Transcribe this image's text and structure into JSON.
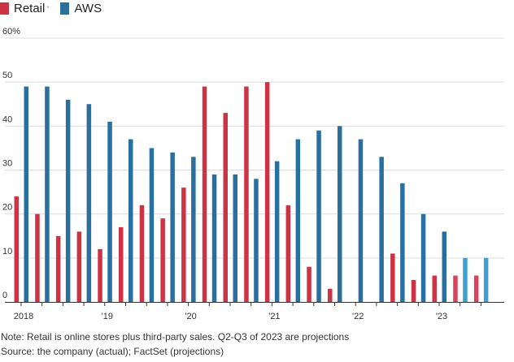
{
  "legend": {
    "retail_label": "Retail",
    "retail_marker": "*",
    "aws_label": "AWS"
  },
  "colors": {
    "retail": "#cc3344",
    "aws": "#2970a0",
    "retail_projection": "#d9435c",
    "aws_projection": "#3d9fd6",
    "grid": "#dddddd",
    "axis": "#333333"
  },
  "notes": {
    "note": "Note: Retail is online stores plus third-party sales. Q2-Q3 of 2023 are projections",
    "source": "Source: the company (actual); FactSet (projections)"
  },
  "chart_data": {
    "type": "bar",
    "title": "",
    "xlabel": "",
    "ylabel": "",
    "ylim": [
      0,
      60
    ],
    "yticks": [
      "0",
      "10",
      "20",
      "30",
      "40",
      "50",
      "60%"
    ],
    "xtick_labels": [
      {
        "label": "2018",
        "quarter_index": 0
      },
      {
        "label": "'19",
        "quarter_index": 4
      },
      {
        "label": "'20",
        "quarter_index": 8
      },
      {
        "label": "'21",
        "quarter_index": 12
      },
      {
        "label": "'22",
        "quarter_index": 16
      },
      {
        "label": "'23",
        "quarter_index": 20
      }
    ],
    "categories": [
      "Q1 2018",
      "Q2 2018",
      "Q3 2018",
      "Q4 2018",
      "Q1 2019",
      "Q2 2019",
      "Q3 2019",
      "Q4 2019",
      "Q1 2020",
      "Q2 2020",
      "Q3 2020",
      "Q4 2020",
      "Q1 2021",
      "Q2 2021",
      "Q3 2021",
      "Q4 2021",
      "Q1 2022",
      "Q2 2022",
      "Q3 2022",
      "Q4 2022",
      "Q1 2023",
      "Q2 2023",
      "Q3 2023"
    ],
    "projected": [
      false,
      false,
      false,
      false,
      false,
      false,
      false,
      false,
      false,
      false,
      false,
      false,
      false,
      false,
      false,
      false,
      false,
      false,
      false,
      false,
      false,
      true,
      true
    ],
    "series": [
      {
        "name": "Retail",
        "values": [
          24,
          20,
          15,
          16,
          12,
          17,
          22,
          19,
          26,
          49,
          43,
          49,
          50,
          22,
          8,
          3,
          0,
          0,
          11,
          5,
          6,
          6,
          6
        ]
      },
      {
        "name": "AWS",
        "values": [
          49,
          49,
          46,
          45,
          41,
          37,
          35,
          34,
          33,
          29,
          29,
          28,
          32,
          37,
          39,
          40,
          37,
          33,
          27,
          20,
          16,
          10,
          10
        ]
      }
    ],
    "grid": true,
    "legend_position": "top-left"
  }
}
